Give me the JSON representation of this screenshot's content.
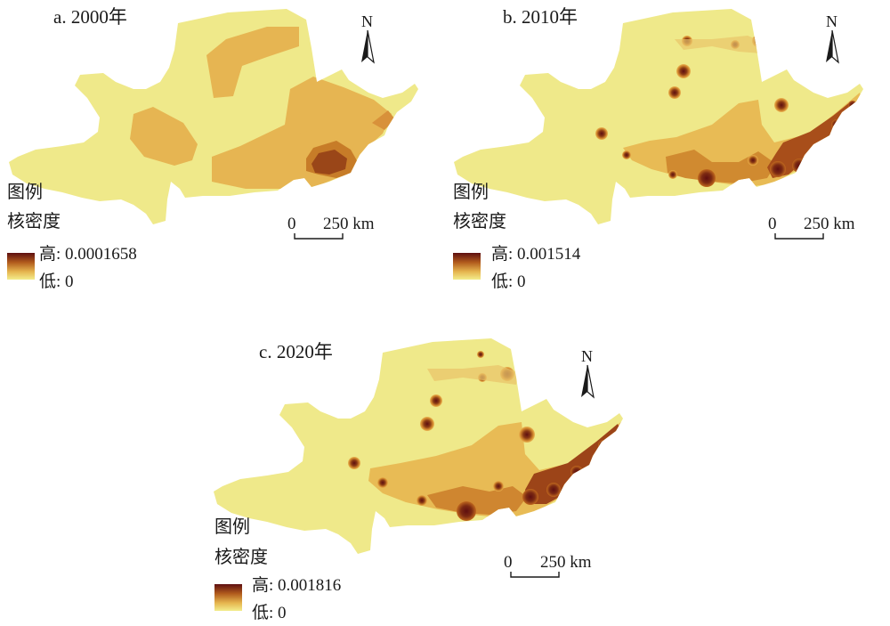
{
  "panels": [
    {
      "title": "a. 2000年",
      "legend": {
        "heading": "图例",
        "subheading": "核密度",
        "high_label": "高: 0.0001658",
        "low_label": "低: 0"
      },
      "scalebar": {
        "zero": "0",
        "distance": "250 km"
      },
      "north": "N"
    },
    {
      "title": "b. 2010年",
      "legend": {
        "heading": "图例",
        "subheading": "核密度",
        "high_label": "高: 0.001514",
        "low_label": "低: 0"
      },
      "scalebar": {
        "zero": "0",
        "distance": "250 km"
      },
      "north": "N"
    },
    {
      "title": "c. 2020年",
      "legend": {
        "heading": "图例",
        "subheading": "核密度",
        "high_label": "高: 0.001816",
        "low_label": "低: 0"
      },
      "scalebar": {
        "zero": "0",
        "distance": "250 km"
      },
      "north": "N"
    }
  ],
  "colors": {
    "base": "#efe98a",
    "low": "#f3ed8d",
    "mid": "#e5b44e",
    "high": "#b05a1c",
    "peak": "#5e0f10"
  }
}
